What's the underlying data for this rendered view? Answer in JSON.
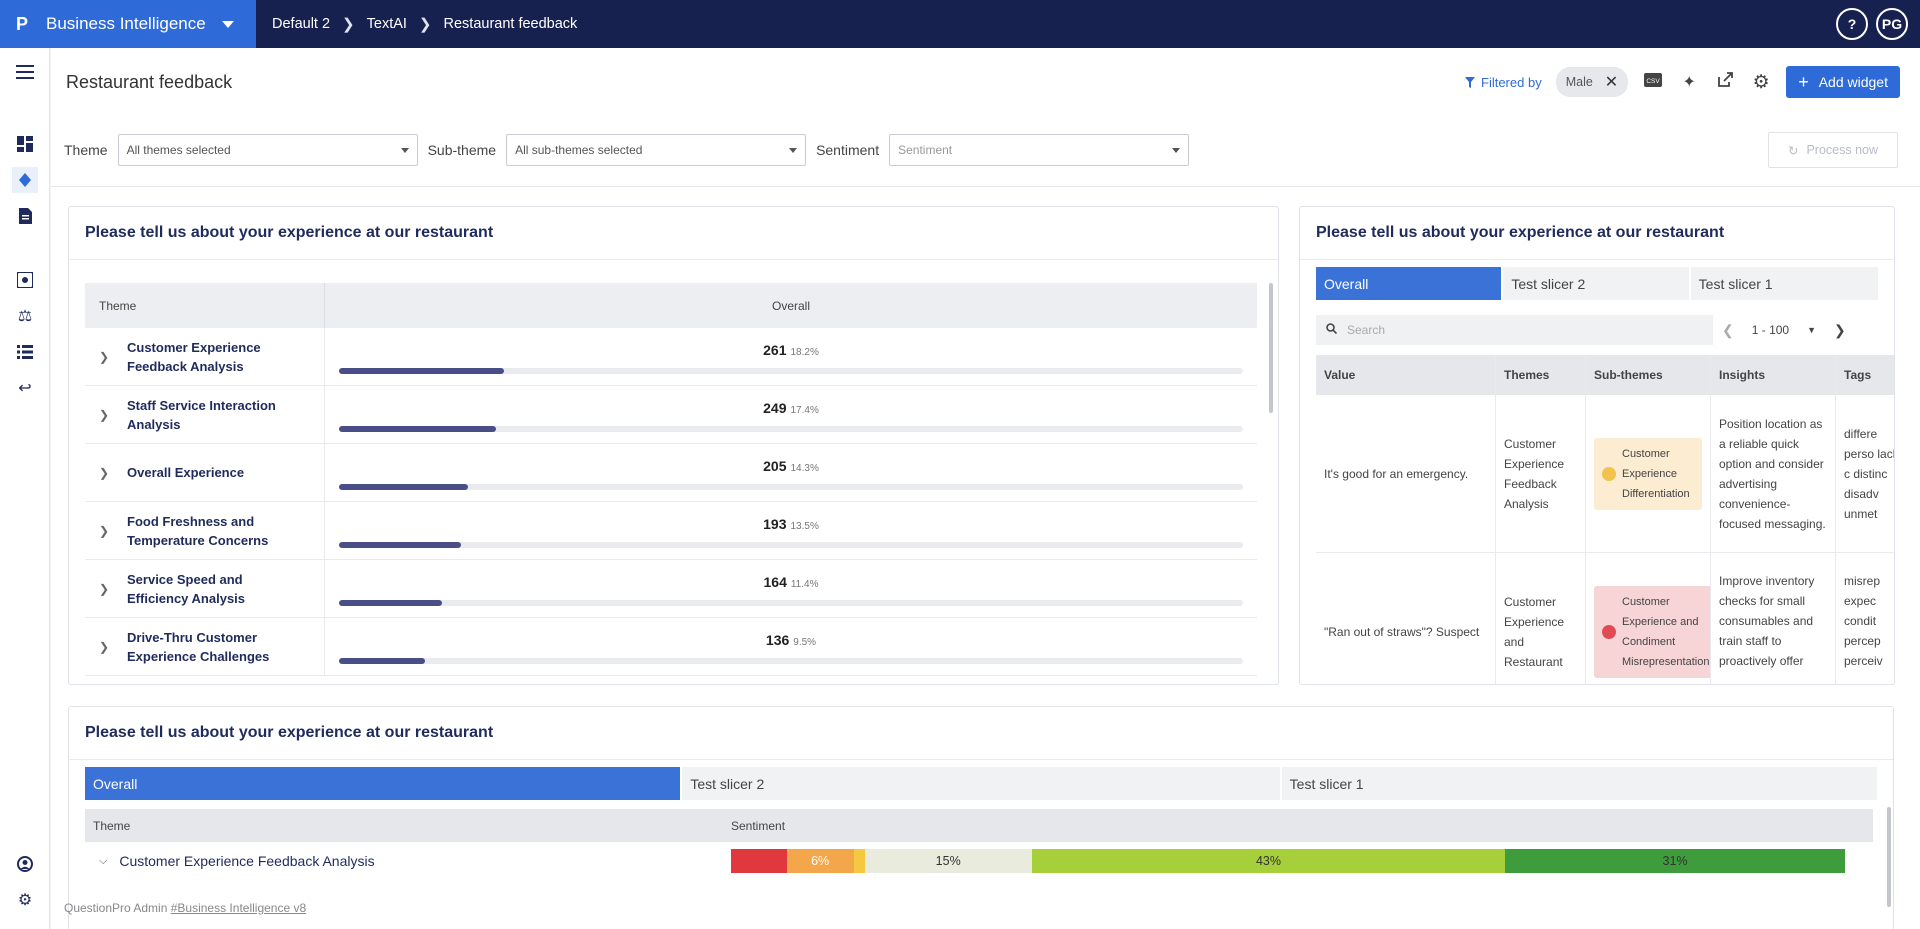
{
  "topbar": {
    "logo": "P",
    "app_name": "Business Intelligence",
    "breadcrumbs": [
      "Default 2",
      "TextAI",
      "Restaurant feedback"
    ],
    "help": "?",
    "avatar": "PG"
  },
  "page": {
    "title": "Restaurant feedback",
    "filtered_by_label": "Filtered by",
    "filter_chip": "Male",
    "add_widget_label": "Add widget",
    "process_now_label": "Process now"
  },
  "filters": {
    "theme_label": "Theme",
    "theme_value": "All themes selected",
    "subtheme_label": "Sub-theme",
    "subtheme_value": "All sub-themes selected",
    "sentiment_label": "Sentiment",
    "sentiment_placeholder": "Sentiment"
  },
  "widget1": {
    "title": "Please tell us about your experience at our restaurant",
    "col_theme": "Theme",
    "col_overall": "Overall",
    "rows": [
      {
        "theme": "Customer Experience Feedback Analysis",
        "count": "261",
        "pct": "18.2%",
        "fill": 0.182
      },
      {
        "theme": "Staff Service Interaction Analysis",
        "count": "249",
        "pct": "17.4%",
        "fill": 0.174
      },
      {
        "theme": "Overall Experience",
        "count": "205",
        "pct": "14.3%",
        "fill": 0.143
      },
      {
        "theme": "Food Freshness and Temperature Concerns",
        "count": "193",
        "pct": "13.5%",
        "fill": 0.135
      },
      {
        "theme": "Service Speed and Efficiency Analysis",
        "count": "164",
        "pct": "11.4%",
        "fill": 0.114
      },
      {
        "theme": "Drive-Thru Customer Experience Challenges",
        "count": "136",
        "pct": "9.5%",
        "fill": 0.095
      }
    ]
  },
  "widget2": {
    "title": "Please tell us about your experience at our restaurant",
    "tabs": [
      "Overall",
      "Test slicer 2",
      "Test slicer 1"
    ],
    "search_placeholder": "Search",
    "range": "1 - 100",
    "columns": [
      "Value",
      "Themes",
      "Sub-themes",
      "Insights",
      "Tags"
    ],
    "rows": [
      {
        "value": "It's good for an emergency.",
        "themes": "Customer Experience Feedback Analysis",
        "subtheme": "Customer Experience Differentiation",
        "insights": "Position location as a reliable quick option and consider advertising convenience-focused messaging.",
        "tags": "differe perso lack, c distinc disadv unmet"
      },
      {
        "value": "\"Ran out of straws\"? Suspect",
        "themes": "Customer Experience and Restaurant",
        "subtheme": "Customer Experience and Condiment Misrepresentation",
        "insights": "Improve inventory checks for small consumables and train staff to proactively offer",
        "tags": "misrep expec condit percep perceiv"
      }
    ]
  },
  "widget3": {
    "title": "Please tell us about your experience at our restaurant",
    "tabs": [
      "Overall",
      "Test slicer 2",
      "Test slicer 1"
    ],
    "col_theme": "Theme",
    "col_sentiment": "Sentiment",
    "row": {
      "theme": "Customer Experience Feedback Analysis",
      "segments": [
        {
          "label": "",
          "share": 0.05,
          "color": "#e0383d"
        },
        {
          "label": "6%",
          "share": 0.06,
          "color": "#f4a64b"
        },
        {
          "label": "",
          "share": 0.01,
          "color": "#f5c842"
        },
        {
          "label": "15%",
          "share": 0.15,
          "color": "#e9ebdc"
        },
        {
          "label": "43%",
          "share": 0.425,
          "color": "#a6cf3a"
        },
        {
          "label": "31%",
          "share": 0.305,
          "color": "#3e9c3c"
        }
      ]
    }
  },
  "footer": {
    "text": "QuestionPro Admin ",
    "link": "#Business Intelligence v8"
  },
  "colors": {
    "topbar": "#172150",
    "brand": "#2e6bd8",
    "accent": "#2e6bd8",
    "bar_fill": "#4a4e87"
  }
}
